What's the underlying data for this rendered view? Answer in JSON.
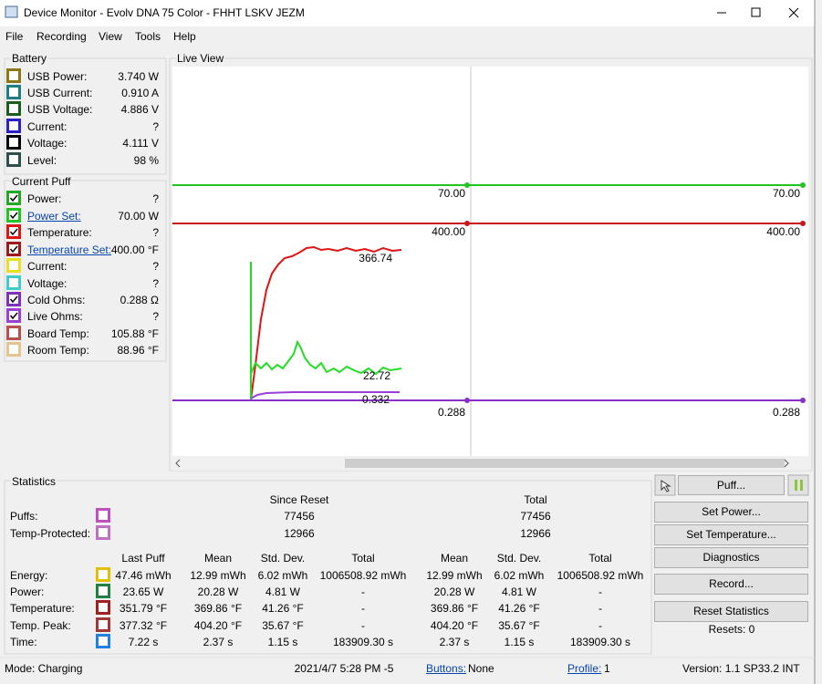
{
  "window": {
    "title": "Device Monitor - Evolv DNA 75 Color - FHHT LSKV JEZM"
  },
  "menu": [
    "File",
    "Recording",
    "View",
    "Tools",
    "Help"
  ],
  "battery": {
    "title": "Battery",
    "rows": [
      {
        "label": "USB Power:",
        "value": "3.740 W",
        "color": "#8b7a14"
      },
      {
        "label": "USB Current:",
        "value": "0.910 A",
        "color": "#1e7f80"
      },
      {
        "label": "USB Voltage:",
        "value": "4.886 V",
        "color": "#1c5c1c"
      },
      {
        "label": "Current:",
        "value": "?",
        "color": "#2a1fc8"
      },
      {
        "label": "Voltage:",
        "value": "4.111 V",
        "color": "#000000"
      },
      {
        "label": "Level:",
        "value": "98 %",
        "color": "#2f4f4f"
      }
    ]
  },
  "current_puff": {
    "title": "Current Puff",
    "rows": [
      {
        "label": "Power:",
        "value": "?",
        "color": "#22a822",
        "checked": true,
        "link": false
      },
      {
        "label": "Power Set:",
        "value": "70.00 W",
        "color": "#22c422",
        "checked": true,
        "link": true
      },
      {
        "label": "Temperature:",
        "value": "?",
        "color": "#e01414",
        "checked": true,
        "link": false
      },
      {
        "label": "Temperature Set:",
        "value": "400.00 °F",
        "color": "#a01818",
        "checked": true,
        "link": true
      },
      {
        "label": "Current:",
        "value": "?",
        "color": "#e8e020",
        "checked": false,
        "link": false
      },
      {
        "label": "Voltage:",
        "value": "?",
        "color": "#40cccc",
        "checked": false,
        "link": false
      },
      {
        "label": "Cold Ohms:",
        "value": "0.288 Ω",
        "color": "#8030c0",
        "checked": true,
        "link": false
      },
      {
        "label": "Live Ohms:",
        "value": "?",
        "color": "#9a40d8",
        "checked": true,
        "link": false
      },
      {
        "label": "Board Temp:",
        "value": "105.88 °F",
        "color": "#b85050",
        "checked": false,
        "link": false
      },
      {
        "label": "Room Temp:",
        "value": "88.96 °F",
        "color": "#e6c490",
        "checked": false,
        "link": false
      }
    ]
  },
  "live_view": {
    "title": "Live View",
    "labels": [
      "70.00",
      "70.00",
      "400.00",
      "400.00",
      "366.74",
      "22.72",
      "0.332",
      "0.288",
      "0.288"
    ]
  },
  "statistics": {
    "title": "Statistics",
    "top_header": [
      "Since Reset",
      "Total"
    ],
    "top_rows": [
      {
        "label": "Puffs:",
        "color": "#c050c0",
        "cells": [
          "77456",
          "77456"
        ]
      },
      {
        "label": "Temp-Protected:",
        "color": "#c070c0",
        "cells": [
          "12966",
          "12966"
        ]
      }
    ],
    "header": [
      "Last Puff",
      "Mean",
      "Std. Dev.",
      "Total",
      "Mean",
      "Std. Dev.",
      "Total"
    ],
    "rows": [
      {
        "label": "Energy:",
        "color": "#e0c000",
        "cells": [
          "47.46 mWh",
          "12.99 mWh",
          "6.02 mWh",
          "1006508.92 mWh",
          "12.99 mWh",
          "6.02 mWh",
          "1006508.92 mWh"
        ]
      },
      {
        "label": "Power:",
        "color": "#208040",
        "cells": [
          "23.65 W",
          "20.28 W",
          "4.81 W",
          "-",
          "20.28 W",
          "4.81 W",
          "-"
        ]
      },
      {
        "label": "Temperature:",
        "color": "#a02020",
        "cells": [
          "351.79 °F",
          "369.86 °F",
          "41.26 °F",
          "-",
          "369.86 °F",
          "41.26 °F",
          "-"
        ]
      },
      {
        "label": "Temp. Peak:",
        "color": "#a03838",
        "cells": [
          "377.32 °F",
          "404.20 °F",
          "35.67 °F",
          "-",
          "404.20 °F",
          "35.67 °F",
          "-"
        ]
      },
      {
        "label": "Time:",
        "color": "#2080e0",
        "cells": [
          "7.22 s",
          "2.37 s",
          "1.15 s",
          "183909.30 s",
          "2.37 s",
          "1.15 s",
          "183909.30 s"
        ]
      }
    ]
  },
  "buttons": {
    "puff": "Puff...",
    "set_power": "Set Power...",
    "set_temperature": "Set Temperature...",
    "diagnostics": "Diagnostics",
    "record": "Record...",
    "reset_statistics": "Reset Statistics",
    "resets": "Resets: 0"
  },
  "status": {
    "mode": "Mode: Charging",
    "datetime": "2021/4/7 5:28 PM -5",
    "buttons_link": "Buttons:",
    "buttons_value": "None",
    "profile_link": "Profile:",
    "profile_value": "1",
    "version": "Version: 1.1 SP33.2 INT"
  }
}
